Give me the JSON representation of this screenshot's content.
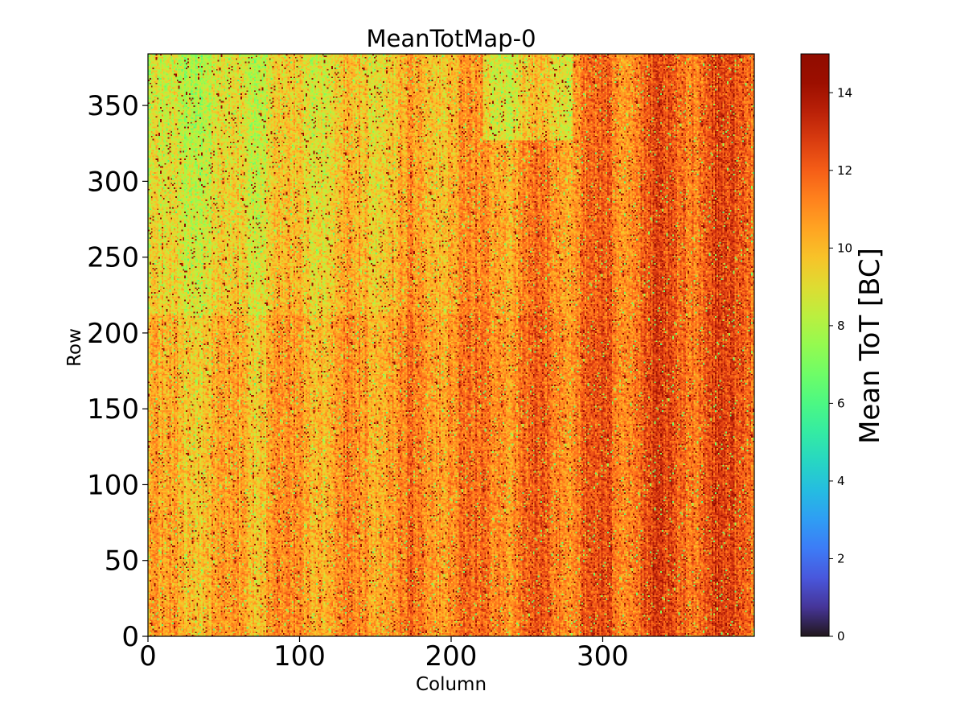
{
  "chart_data": {
    "type": "heatmap",
    "title": "MeanTotMap-0",
    "xlabel": "Column",
    "ylabel": "Row",
    "xlim": [
      0,
      400
    ],
    "ylim": [
      0,
      384
    ],
    "x_ticks": [
      0,
      100,
      200,
      300
    ],
    "y_ticks": [
      0,
      50,
      100,
      150,
      200,
      250,
      300,
      350
    ],
    "colorbar": {
      "label": "Mean ToT [BC]",
      "range": [
        0,
        15
      ],
      "ticks": [
        0,
        2,
        4,
        6,
        8,
        10,
        12,
        14
      ],
      "colormap": "turbo",
      "placement": "right"
    },
    "grid": false,
    "description_of_values": {
      "typical_range": [
        6,
        15
      ],
      "dominant_value": 11,
      "trend": "values higher toward right columns; greener patches near top-left"
    }
  }
}
